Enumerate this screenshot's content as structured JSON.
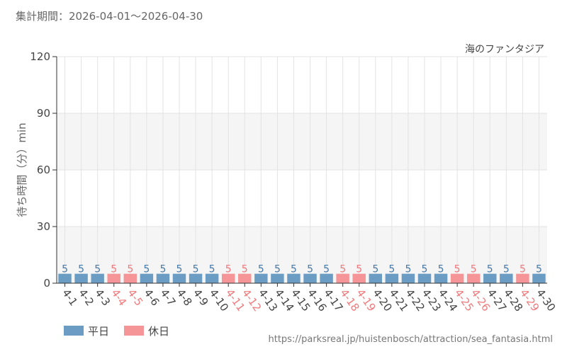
{
  "header": {
    "period_label": "集計期間：2026-04-01～2026-04-30"
  },
  "footer": {
    "url": "https://parksreal.jp/huistenbosch/attraction/sea_fantasia.html"
  },
  "legend": {
    "weekday_label": "平日",
    "holiday_label": "休日"
  },
  "colors": {
    "weekday": "#6b9cc4",
    "holiday": "#f59598",
    "weekday_text": "#4a7ba8",
    "holiday_text": "#f07a7d",
    "weekday_tick": "#444444",
    "holiday_tick": "#f07a7d",
    "band": "#f5f5f5",
    "grid": "#e3e3e3"
  },
  "chart_data": {
    "type": "bar",
    "series_label": "海のファンタジア",
    "ylabel": "待ち時間（分）min",
    "ylim": [
      0,
      120
    ],
    "yticks": [
      0,
      30,
      60,
      90,
      120
    ],
    "categories": [
      "4-1",
      "4-2",
      "4-3",
      "4-4",
      "4-5",
      "4-6",
      "4-7",
      "4-8",
      "4-9",
      "4-10",
      "4-11",
      "4-12",
      "4-13",
      "4-14",
      "4-15",
      "4-16",
      "4-17",
      "4-18",
      "4-19",
      "4-20",
      "4-21",
      "4-22",
      "4-23",
      "4-24",
      "4-25",
      "4-26",
      "4-27",
      "4-28",
      "4-29",
      "4-30"
    ],
    "values": [
      5,
      5,
      5,
      5,
      5,
      5,
      5,
      5,
      5,
      5,
      5,
      5,
      5,
      5,
      5,
      5,
      5,
      5,
      5,
      5,
      5,
      5,
      5,
      5,
      5,
      5,
      5,
      5,
      5,
      5
    ],
    "day_type": [
      "weekday",
      "weekday",
      "weekday",
      "holiday",
      "holiday",
      "weekday",
      "weekday",
      "weekday",
      "weekday",
      "weekday",
      "holiday",
      "holiday",
      "weekday",
      "weekday",
      "weekday",
      "weekday",
      "weekday",
      "holiday",
      "holiday",
      "weekday",
      "weekday",
      "weekday",
      "weekday",
      "weekday",
      "holiday",
      "holiday",
      "weekday",
      "weekday",
      "holiday",
      "weekday"
    ],
    "grid": true
  }
}
